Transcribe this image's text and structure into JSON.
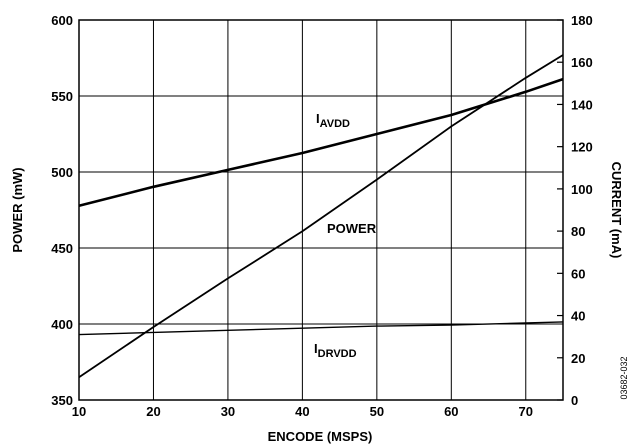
{
  "chart_data": {
    "type": "line",
    "title": "",
    "xlabel": "ENCODE (MSPS)",
    "ylabel_left": "POWER (mW)",
    "ylabel_right": "CURRENT (mA)",
    "xlim": [
      10,
      75
    ],
    "ylim_left": [
      350,
      600
    ],
    "ylim_right": [
      0,
      180
    ],
    "x_ticks": [
      10,
      20,
      30,
      40,
      50,
      60,
      70
    ],
    "y_left_ticks": [
      350,
      400,
      450,
      500,
      550,
      600
    ],
    "y_right_ticks": [
      0,
      20,
      40,
      60,
      80,
      100,
      120,
      140,
      160,
      180
    ],
    "grid": true,
    "series": [
      {
        "name": "IAVDD",
        "label_main": "I",
        "label_sub": "AVDD",
        "axis": "right",
        "x": [
          10,
          20,
          30,
          40,
          50,
          60,
          70,
          75
        ],
        "values": [
          92,
          101,
          109,
          117,
          126,
          135,
          146,
          152
        ]
      },
      {
        "name": "POWER",
        "label_main": "POWER",
        "label_sub": "",
        "axis": "left",
        "x": [
          10,
          20,
          30,
          40,
          50,
          60,
          70,
          75
        ],
        "values": [
          365,
          398,
          430,
          461,
          495,
          530,
          562,
          577
        ]
      },
      {
        "name": "IDRVDD",
        "label_main": "I",
        "label_sub": "DRVDD",
        "axis": "right",
        "x": [
          10,
          20,
          30,
          40,
          50,
          60,
          70,
          75
        ],
        "values": [
          31,
          32,
          33,
          34,
          35,
          35.5,
          36.5,
          37
        ]
      }
    ],
    "figure_id": "03682-032"
  }
}
